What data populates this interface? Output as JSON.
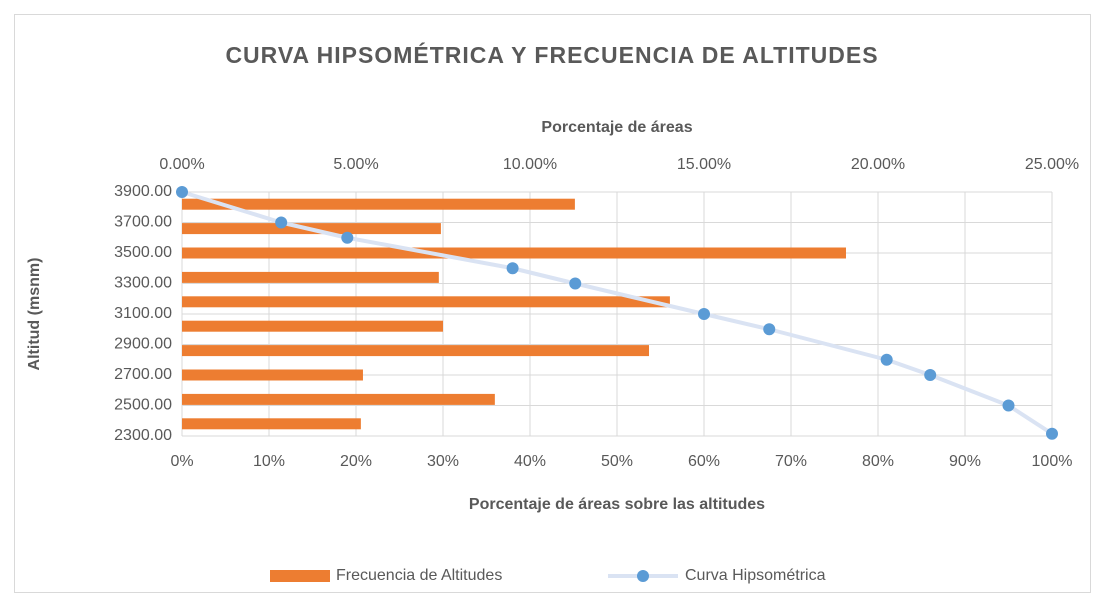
{
  "chart_data": {
    "type": "combo",
    "title": "CURVA HIPSOMÉTRICA Y FRECUENCIA DE ALTITUDES",
    "x2_label": "Porcentaje de áreas",
    "x_label": "Porcentaje de áreas sobre las altitudes",
    "y_label": "Altitud (msnm)",
    "ylim": [
      2300,
      3900
    ],
    "yticks": [
      {
        "value": 2300,
        "label": "2300.00"
      },
      {
        "value": 2500,
        "label": "2500.00"
      },
      {
        "value": 2700,
        "label": "2700.00"
      },
      {
        "value": 2900,
        "label": "2900.00"
      },
      {
        "value": 3100,
        "label": "3100.00"
      },
      {
        "value": 3300,
        "label": "3300.00"
      },
      {
        "value": 3500,
        "label": "3500.00"
      },
      {
        "value": 3700,
        "label": "3700.00"
      },
      {
        "value": 3900,
        "label": "3900.00"
      }
    ],
    "xlim": [
      0,
      100
    ],
    "xticks": [
      {
        "value": 0,
        "label": "0%"
      },
      {
        "value": 10,
        "label": "10%"
      },
      {
        "value": 20,
        "label": "20%"
      },
      {
        "value": 30,
        "label": "30%"
      },
      {
        "value": 40,
        "label": "40%"
      },
      {
        "value": 50,
        "label": "50%"
      },
      {
        "value": 60,
        "label": "60%"
      },
      {
        "value": 70,
        "label": "70%"
      },
      {
        "value": 80,
        "label": "80%"
      },
      {
        "value": 90,
        "label": "90%"
      },
      {
        "value": 100,
        "label": "100%"
      }
    ],
    "x2lim": [
      0,
      25
    ],
    "x2ticks": [
      {
        "value": 0,
        "label": "0.00%"
      },
      {
        "value": 5,
        "label": "5.00%"
      },
      {
        "value": 10,
        "label": "10.00%"
      },
      {
        "value": 15,
        "label": "15.00%"
      },
      {
        "value": 20,
        "label": "20.00%"
      },
      {
        "value": 25,
        "label": "25.00%"
      }
    ],
    "grid": true,
    "legend": "bottom",
    "series": [
      {
        "name": "Frecuencia de Altitudes",
        "type": "bar",
        "axis": "x2",
        "color": "#ed7d31",
        "y": [
          3820,
          3660,
          3500,
          3340,
          3180,
          3020,
          2860,
          2700,
          2540,
          2380
        ],
        "values": [
          11.29,
          7.44,
          19.08,
          7.38,
          14.02,
          7.5,
          13.42,
          5.2,
          8.99,
          5.14
        ]
      },
      {
        "name": "Curva  Hipsométrica",
        "type": "line",
        "color": "#dae3f3",
        "marker_color": "#5b9bd5",
        "x": [
          0,
          11.4,
          19,
          38,
          45.2,
          60,
          67.5,
          81,
          86,
          95,
          100
        ],
        "values": [
          3900,
          3700,
          3600,
          3400,
          3300,
          3100,
          3000,
          2800,
          2700,
          2500,
          2315
        ]
      }
    ]
  }
}
